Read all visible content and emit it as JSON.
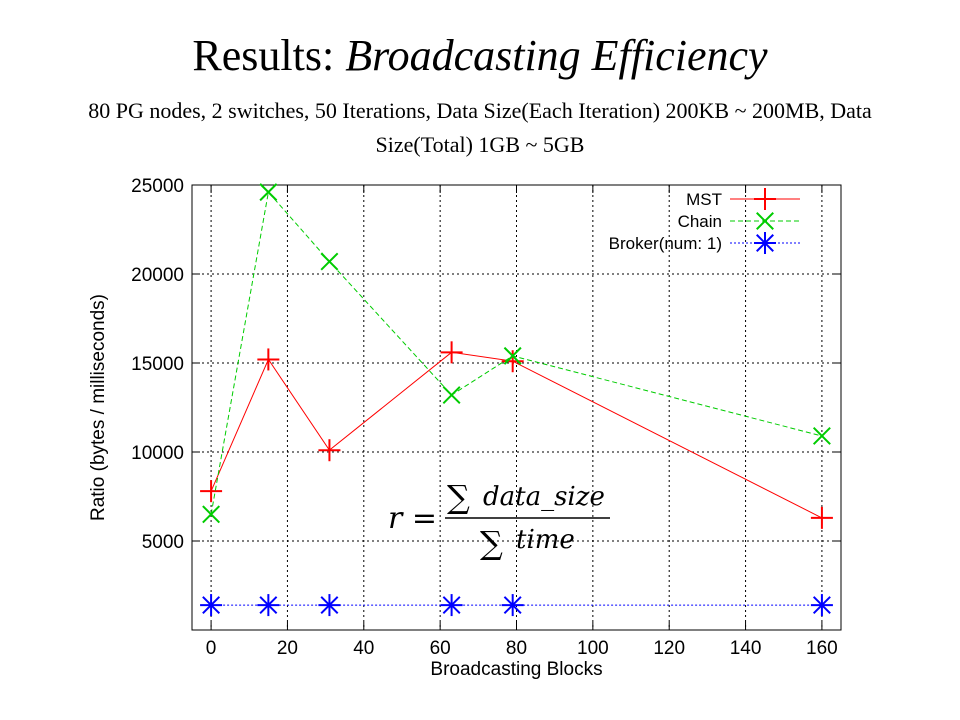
{
  "slide": {
    "title_plain": "Results: ",
    "title_italic": "Broadcasting Efficiency",
    "subtitle": "80 PG nodes, 2 switches, 50 Iterations, Data Size(Each Iteration) 200KB ~ 200MB, Data Size(Total) 1GB ~ 5GB"
  },
  "formula": {
    "lhs": "r =",
    "sum": "∑",
    "numerator": "data_size",
    "denominator": "time"
  },
  "chart_data": {
    "type": "line",
    "xlabel": "Broadcasting Blocks",
    "ylabel": "Ratio (bytes / milliseconds)",
    "xlim": [
      -5,
      165
    ],
    "ylim": [
      0,
      25000
    ],
    "xticks": [
      0,
      20,
      40,
      60,
      80,
      100,
      120,
      140,
      160
    ],
    "yticks": [
      5000,
      10000,
      15000,
      20000,
      25000
    ],
    "grid": true,
    "legend_position": "top-right",
    "series": [
      {
        "name": "MST",
        "color": "#ff0000",
        "dash": "solid",
        "marker": "plus",
        "x": [
          0,
          15,
          31,
          63,
          79,
          160
        ],
        "y": [
          7800,
          15200,
          10100,
          15600,
          15100,
          6300
        ]
      },
      {
        "name": "Chain",
        "color": "#00cc00",
        "dash": "dashed",
        "marker": "cross",
        "x": [
          0,
          15,
          31,
          63,
          79,
          160
        ],
        "y": [
          6500,
          24600,
          20700,
          13200,
          15400,
          10900
        ]
      },
      {
        "name": "Broker(num: 1)",
        "color": "#0000ff",
        "dash": "dotted",
        "marker": "star",
        "x": [
          0,
          15,
          31,
          63,
          79,
          160
        ],
        "y": [
          1400,
          1400,
          1400,
          1400,
          1400,
          1400
        ]
      }
    ]
  }
}
